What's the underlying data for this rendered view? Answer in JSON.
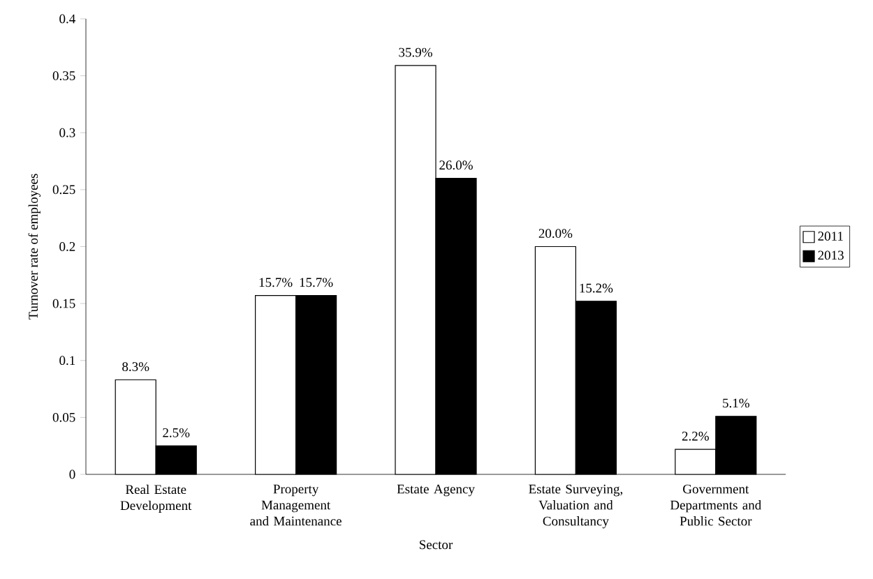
{
  "chart_data": {
    "type": "bar",
    "xlabel": "Sector",
    "ylabel": "Turnover rate of employees",
    "categories": [
      "Real Estate Development",
      "Property Management and Maintenance",
      "Estate Agency",
      "Estate Surveying, Valuation and Consultancy",
      "Government Departments and Public Sector"
    ],
    "series": [
      {
        "name": "2011",
        "color": "#ffffff",
        "values": [
          0.083,
          0.157,
          0.359,
          0.2,
          0.022
        ],
        "value_labels": [
          "8.3%",
          "15.7%",
          "35.9%",
          "20.0%",
          "2.2%"
        ]
      },
      {
        "name": "2013",
        "color": "#000000",
        "values": [
          0.025,
          0.157,
          0.26,
          0.152,
          0.051
        ],
        "value_labels": [
          "2.5%",
          "15.7%",
          "26.0%",
          "15.2%",
          "5.1%"
        ]
      }
    ],
    "ylim": [
      0,
      0.4
    ],
    "yticks": [
      0,
      0.05,
      0.1,
      0.15,
      0.2,
      0.25,
      0.3,
      0.35,
      0.4
    ],
    "legend": "right",
    "grid": false
  }
}
